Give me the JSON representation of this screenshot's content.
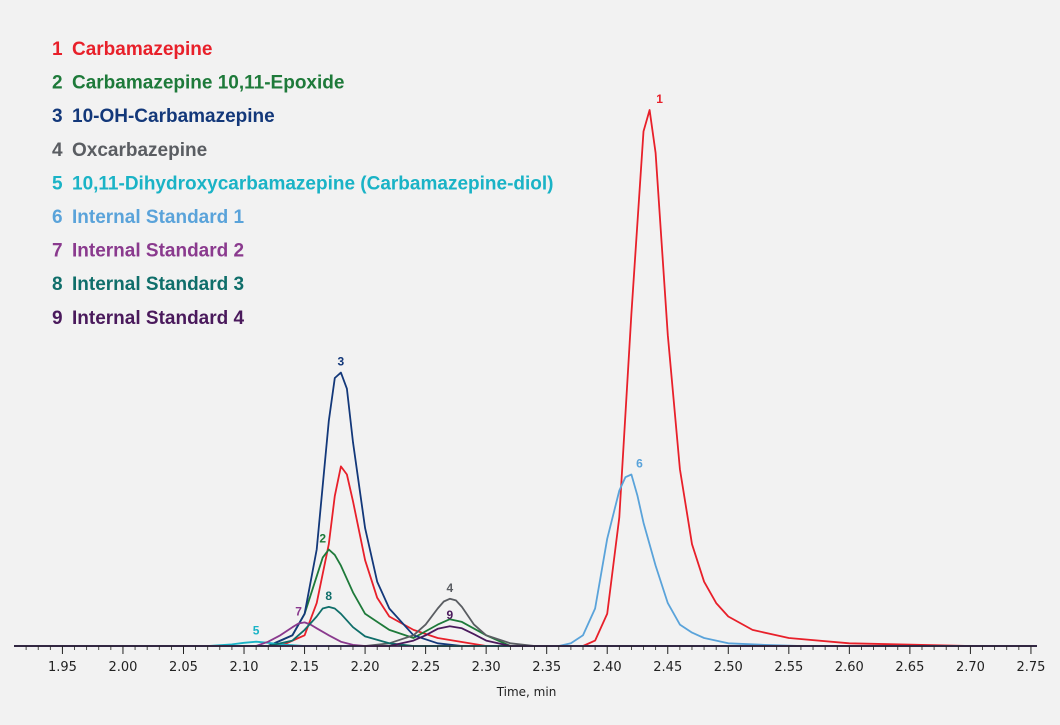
{
  "chart_data": {
    "type": "line",
    "xlabel": "Time, min",
    "ylabel": "",
    "title": "",
    "xlim": [
      1.91,
      2.755
    ],
    "ylim": [
      0,
      100
    ],
    "x_ticks": [
      "1.95",
      "2.00",
      "2.05",
      "2.10",
      "2.15",
      "2.20",
      "2.25",
      "2.30",
      "2.35",
      "2.40",
      "2.45",
      "2.50",
      "2.55",
      "2.60",
      "2.65",
      "2.70",
      "2.75"
    ],
    "grid": false,
    "legend_position": "top-left",
    "series": [
      {
        "id": "1",
        "name": "Carbamazepine",
        "color": "#e8202a",
        "peak_label": "1",
        "x": [
          2.13,
          2.15,
          2.16,
          2.17,
          2.175,
          2.18,
          2.185,
          2.19,
          2.2,
          2.21,
          2.22,
          2.24,
          2.26,
          2.3,
          2.38,
          2.39,
          2.4,
          2.41,
          2.42,
          2.43,
          2.435,
          2.44,
          2.45,
          2.46,
          2.47,
          2.48,
          2.49,
          2.5,
          2.52,
          2.55,
          2.6,
          2.7
        ],
        "y": [
          0,
          2,
          8,
          19,
          28,
          33.5,
          32,
          27,
          16,
          9,
          5.5,
          3,
          1.5,
          0,
          0,
          1,
          6,
          24,
          62,
          96,
          100,
          92,
          58,
          33,
          19,
          12,
          8,
          5.5,
          3,
          1.5,
          0.5,
          0
        ]
      },
      {
        "id": "2",
        "name": "Carbamazepine 10,11-Epoxide",
        "color": "#1e7a3a",
        "peak_label": "2",
        "x": [
          2.12,
          2.14,
          2.15,
          2.16,
          2.165,
          2.17,
          2.175,
          2.18,
          2.19,
          2.2,
          2.22,
          2.24,
          2.26,
          2.27,
          2.28,
          2.3,
          2.32
        ],
        "y": [
          0,
          2,
          6,
          13,
          16.5,
          18,
          17,
          15,
          10,
          6,
          3,
          1.5,
          4,
          5,
          4.5,
          2,
          0
        ]
      },
      {
        "id": "3",
        "name": "10-OH-Carbamazepine",
        "color": "#13387a",
        "peak_label": "3",
        "x": [
          2.12,
          2.14,
          2.15,
          2.16,
          2.17,
          2.175,
          2.18,
          2.185,
          2.19,
          2.2,
          2.21,
          2.22,
          2.24,
          2.26,
          2.28
        ],
        "y": [
          0,
          2,
          6,
          18,
          42,
          50,
          51,
          48,
          38,
          22,
          12,
          7,
          2,
          0.5,
          0
        ]
      },
      {
        "id": "4",
        "name": "Oxcarbazepine",
        "color": "#5a5d62",
        "peak_label": "4",
        "x": [
          2.2,
          2.22,
          2.24,
          2.25,
          2.26,
          2.265,
          2.27,
          2.275,
          2.28,
          2.29,
          2.3,
          2.32,
          2.34
        ],
        "y": [
          0,
          0.5,
          2,
          4,
          7,
          8.3,
          8.8,
          8.5,
          7.3,
          4,
          2,
          0.5,
          0
        ]
      },
      {
        "id": "5",
        "name": "10,11-Dihydroxycarbamazepine (Carbamazepine-diol)",
        "color": "#1ab3c6",
        "peak_label": "5",
        "x": [
          2.07,
          2.09,
          2.1,
          2.11,
          2.12,
          2.13,
          2.15
        ],
        "y": [
          0,
          0.3,
          0.6,
          0.8,
          0.6,
          0.3,
          0
        ]
      },
      {
        "id": "6",
        "name": "Internal Standard 1",
        "color": "#5aa3da",
        "peak_label": "6",
        "x": [
          2.36,
          2.37,
          2.38,
          2.39,
          2.4,
          2.41,
          2.415,
          2.42,
          2.425,
          2.43,
          2.44,
          2.45,
          2.46,
          2.47,
          2.48,
          2.5,
          2.53,
          2.56
        ],
        "y": [
          0,
          0.5,
          2,
          7,
          20,
          29,
          31.5,
          32,
          28,
          23,
          15,
          8,
          4,
          2.5,
          1.5,
          0.5,
          0.2,
          0
        ]
      },
      {
        "id": "7",
        "name": "Internal Standard 2",
        "color": "#8a3a8e",
        "peak_label": "7",
        "x": [
          2.11,
          2.12,
          2.13,
          2.14,
          2.145,
          2.15,
          2.155,
          2.16,
          2.17,
          2.18,
          2.19,
          2.2
        ],
        "y": [
          0,
          0.8,
          2,
          3.5,
          4.2,
          4.4,
          4,
          3.3,
          2,
          0.8,
          0.2,
          0
        ]
      },
      {
        "id": "8",
        "name": "Internal Standard 3",
        "color": "#0f6e6a",
        "peak_label": "8",
        "x": [
          2.12,
          2.14,
          2.15,
          2.16,
          2.165,
          2.17,
          2.175,
          2.18,
          2.19,
          2.2,
          2.22,
          2.24
        ],
        "y": [
          0,
          1,
          3,
          5.5,
          7,
          7.3,
          7,
          6,
          3.5,
          1.8,
          0.5,
          0
        ]
      },
      {
        "id": "9",
        "name": "Internal Standard 4",
        "color": "#4a1a5c",
        "peak_label": "9",
        "x": [
          2.22,
          2.24,
          2.25,
          2.26,
          2.27,
          2.28,
          2.29,
          2.3,
          2.32
        ],
        "y": [
          0,
          1,
          2,
          3.2,
          3.7,
          3.3,
          2.2,
          1,
          0
        ]
      }
    ]
  }
}
